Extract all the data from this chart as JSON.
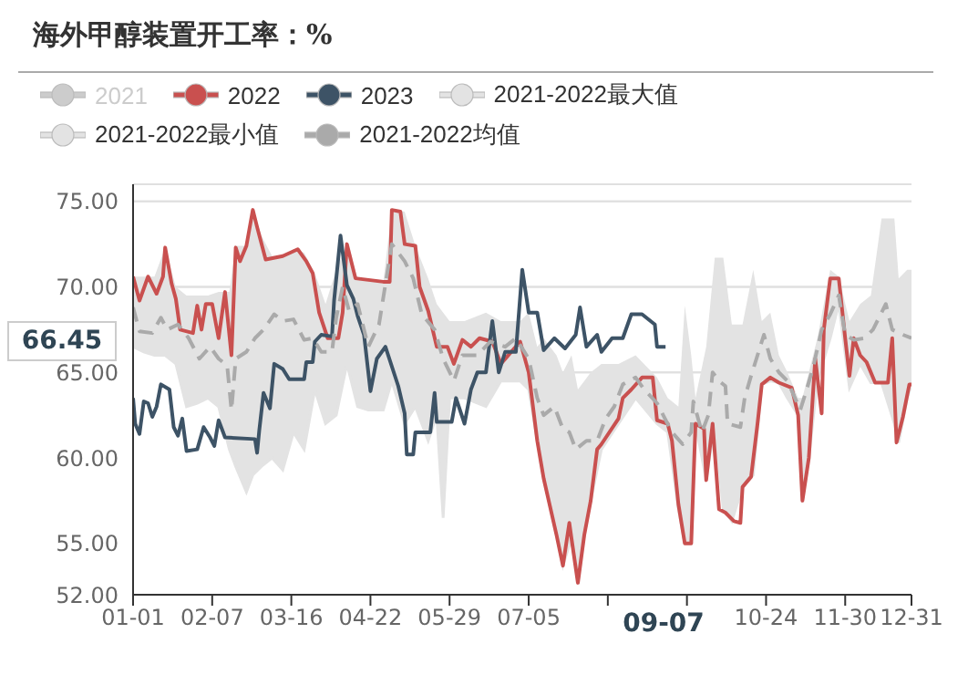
{
  "chart_data": {
    "type": "line",
    "title": "海外甲醇装置开工率：%",
    "legend": "top left",
    "grid": "y",
    "marker": "none",
    "xlim": [
      "--01-01",
      "--12-31"
    ],
    "xticks": [
      {
        "value": "--01-01",
        "label": "01-01"
      },
      {
        "value": "--02-07",
        "label": "02-07"
      },
      {
        "value": "--03-16",
        "label": "03-16"
      },
      {
        "value": "--04-22",
        "label": "04-22"
      },
      {
        "value": "--05-29",
        "label": "05-29"
      },
      {
        "value": "--07-05",
        "label": "07-05"
      },
      {
        "value": "--08-11",
        "label": null
      },
      {
        "value": "--09-17",
        "label": null
      },
      {
        "value": "--10-24",
        "label": "10-24"
      },
      {
        "value": "--11-30",
        "label": "11-30"
      },
      {
        "value": "--12-31",
        "label": "12-31"
      }
    ],
    "ylim": [
      52,
      76
    ],
    "yticks": [
      {
        "value": 52,
        "label": "52.00"
      },
      {
        "value": 55,
        "label": "55.00"
      },
      {
        "value": 60,
        "label": "60.00"
      },
      {
        "value": 65,
        "label": "65.00"
      },
      {
        "value": 70,
        "label": "70.00"
      },
      {
        "value": 75,
        "label": "75.00"
      }
    ],
    "annotations": [
      "66.45",
      "09-07"
    ],
    "series": [
      {
        "name": "2021",
        "color": "#cccccc"
      },
      {
        "name": "2022",
        "color": "#c9504f",
        "x": [
          "--01-01",
          "--01-04",
          "--01-08",
          "--01-12",
          "--01-15",
          "--01-16",
          "--01-19",
          "--01-21",
          "--01-23",
          "--01-29",
          "--01-31",
          "--02-02",
          "--02-04",
          "--02-07",
          "--02-10",
          "--02-13",
          "--02-16",
          "--02-18",
          "--02-20",
          "--02-23",
          "--02-26",
          "--02-28",
          "--03-04",
          "--03-12",
          "--03-19",
          "--03-23",
          "--03-26",
          "--03-29",
          "--04-02",
          "--04-07",
          "--04-09",
          "--04-11",
          "--04-15",
          "--04-28",
          "--05-01",
          "--05-02",
          "--05-06",
          "--05-08",
          "--05-13",
          "--05-15",
          "--05-19",
          "--05-23",
          "--05-28",
          "--05-31",
          "--06-04",
          "--06-08",
          "--06-12",
          "--06-18",
          "--06-22",
          "--07-01",
          "--07-05",
          "--07-09",
          "--07-12",
          "--07-18",
          "--07-21",
          "--07-24",
          "--07-25",
          "--07-28",
          "--07-31",
          "--08-03",
          "--08-06",
          "--08-08",
          "--08-16",
          "--08-18",
          "--08-22",
          "--08-27",
          "--09-01",
          "--09-03",
          "--09-08",
          "--09-10",
          "--09-13",
          "--09-16",
          "--09-19",
          "--09-21",
          "--09-25",
          "--09-26",
          "--09-29",
          "--10-02",
          "--10-05",
          "--10-09",
          "--10-12",
          "--10-13",
          "--10-17",
          "--10-20",
          "--10-22",
          "--10-26",
          "--10-30",
          "--11-05",
          "--11-08",
          "--11-10",
          "--11-13",
          "--11-16",
          "--11-19",
          "--11-20",
          "--11-23",
          "--11-27",
          "--11-30",
          "--12-02",
          "--12-04",
          "--12-07",
          "--12-10",
          "--12-14",
          "--12-20",
          "--12-22",
          "--12-24",
          "--12-27",
          "--12-30",
          "--12-31"
        ],
        "values": [
          70.6,
          69.2,
          70.6,
          69.6,
          70.6,
          72.3,
          70.2,
          69.3,
          67.5,
          67.3,
          68.9,
          67.5,
          69.0,
          69.0,
          67.0,
          69.7,
          66.0,
          72.3,
          71.5,
          72.4,
          74.5,
          73.5,
          71.6,
          71.8,
          72.2,
          71.5,
          70.8,
          68.5,
          67.0,
          67.0,
          68.5,
          72.5,
          70.5,
          70.3,
          70.3,
          74.5,
          74.4,
          72.5,
          72.4,
          70.0,
          68.6,
          66.5,
          66.5,
          65.5,
          66.9,
          66.5,
          67.0,
          66.8,
          65.5,
          66.8,
          65.0,
          61.0,
          58.8,
          55.5,
          53.7,
          56.2,
          55.3,
          52.7,
          55.5,
          57.5,
          60.5,
          60.8,
          62.3,
          63.5,
          64.0,
          64.7,
          64.7,
          62.2,
          62.0,
          61.0,
          57.3,
          55.0,
          55.0,
          62.0,
          61.7,
          58.7,
          62.0,
          57.0,
          56.8,
          56.3,
          56.2,
          58.3,
          58.9,
          62.0,
          64.3,
          64.7,
          64.4,
          64.1,
          62.5,
          57.5,
          60.0,
          65.8,
          62.6,
          67.5,
          70.5,
          70.5,
          67.0,
          64.8,
          67.0,
          66.0,
          65.6,
          64.4,
          64.4,
          67.0,
          60.9,
          62.4,
          64.3,
          64.3
        ]
      },
      {
        "name": "2023",
        "color": "#3d5366",
        "x": [
          "--01-01",
          "--01-02",
          "--01-04",
          "--01-06",
          "--01-08",
          "--01-10",
          "--01-12",
          "--01-14",
          "--01-18",
          "--01-20",
          "--01-22",
          "--01-24",
          "--01-26",
          "--01-31",
          "--02-03",
          "--02-06",
          "--02-08",
          "--02-10",
          "--02-13",
          "--02-27",
          "--02-28",
          "--03-01",
          "--03-03",
          "--03-06",
          "--03-08",
          "--03-12",
          "--03-15",
          "--03-22",
          "--03-23",
          "--03-26",
          "--03-27",
          "--03-30",
          "--04-04",
          "--04-05",
          "--04-08",
          "--04-11",
          "--04-14",
          "--04-16",
          "--04-19",
          "--04-22",
          "--04-25",
          "--04-29",
          "--05-05",
          "--05-08",
          "--05-09",
          "--05-12",
          "--05-13",
          "--05-20",
          "--05-22",
          "--05-23",
          "--05-30",
          "--06-01",
          "--06-05",
          "--06-08",
          "--06-11",
          "--06-15",
          "--06-18",
          "--06-21",
          "--06-24",
          "--06-29",
          "--07-02",
          "--07-05",
          "--07-09",
          "--07-12",
          "--07-17",
          "--07-22",
          "--07-27",
          "--07-29",
          "--08-01",
          "--08-06",
          "--08-08",
          "--08-13",
          "--08-18",
          "--08-22",
          "--08-27",
          "--09-02",
          "--09-03",
          "--09-07"
        ],
        "values": [
          63.5,
          62.0,
          61.4,
          63.3,
          63.2,
          62.4,
          63.0,
          64.3,
          64.0,
          61.8,
          61.3,
          62.3,
          60.4,
          60.5,
          61.8,
          61.2,
          60.7,
          62.2,
          61.2,
          61.1,
          60.3,
          61.6,
          63.8,
          62.9,
          65.5,
          65.2,
          64.6,
          64.6,
          65.6,
          65.6,
          66.8,
          67.2,
          67.1,
          69.2,
          73.0,
          70.1,
          69.3,
          68.3,
          67.2,
          63.9,
          65.8,
          66.5,
          64.2,
          62.6,
          60.2,
          60.2,
          61.5,
          61.5,
          63.8,
          62.1,
          62.1,
          63.5,
          62.0,
          64.0,
          65.0,
          65.0,
          68.0,
          65.0,
          66.2,
          66.2,
          71.0,
          68.5,
          68.5,
          66.3,
          67.0,
          66.4,
          67.2,
          68.8,
          66.5,
          67.2,
          66.2,
          67.0,
          67.0,
          68.4,
          68.4,
          67.8,
          66.5,
          66.5
        ]
      },
      {
        "name": "2021-2022最大值",
        "color": "#e3e3e3",
        "type": "area",
        "x": [
          "--01-01",
          "--01-06",
          "--01-11",
          "--01-16",
          "--01-21",
          "--01-26",
          "--01-31",
          "--02-05",
          "--02-10",
          "--02-15",
          "--02-18",
          "--02-23",
          "--02-26",
          "--03-02",
          "--03-07",
          "--03-12",
          "--03-17",
          "--03-22",
          "--03-27",
          "--04-01",
          "--04-06",
          "--04-11",
          "--04-16",
          "--04-21",
          "--04-28",
          "--05-02",
          "--05-08",
          "--05-13",
          "--05-19",
          "--05-23",
          "--05-26",
          "--05-29",
          "--06-05",
          "--06-15",
          "--06-22",
          "--07-01",
          "--07-05",
          "--07-09",
          "--07-12",
          "--07-18",
          "--07-21",
          "--07-25",
          "--07-28",
          "--07-31",
          "--08-03",
          "--08-08",
          "--08-16",
          "--08-24",
          "--09-03",
          "--09-08",
          "--09-13",
          "--09-16",
          "--09-19",
          "--09-21",
          "--09-26",
          "--09-30",
          "--10-04",
          "--10-08",
          "--10-13",
          "--10-18",
          "--10-22",
          "--10-26",
          "--10-30",
          "--11-03",
          "--11-08",
          "--11-10",
          "--11-13",
          "--11-17",
          "--11-23",
          "--11-27",
          "--12-02",
          "--12-07",
          "--12-12",
          "--12-17",
          "--12-23",
          "--12-25",
          "--12-29",
          "--12-31"
        ],
        "values": [
          70.6,
          70.6,
          70.6,
          72.3,
          70.0,
          69.5,
          69.5,
          69.5,
          69.7,
          69.7,
          72.4,
          72.4,
          74.5,
          73.0,
          71.8,
          71.8,
          72.2,
          72.0,
          70.8,
          69.0,
          71.0,
          72.5,
          70.5,
          70.5,
          70.3,
          74.5,
          74.4,
          72.4,
          70.5,
          69.0,
          68.5,
          68.0,
          68.0,
          68.5,
          68.0,
          68.0,
          68.5,
          66.5,
          67.0,
          66.0,
          65.0,
          66.0,
          64.0,
          64.5,
          65.0,
          65.5,
          65.5,
          66.0,
          64.7,
          63.5,
          63.0,
          68.9,
          66.0,
          63.5,
          66.5,
          71.7,
          71.7,
          67.8,
          67.8,
          71.0,
          68.0,
          68.5,
          66.0,
          65.0,
          63.5,
          63.5,
          65.0,
          67.0,
          71.0,
          70.6,
          68.0,
          69.0,
          69.5,
          74.0,
          74.0,
          70.5,
          71.0,
          71.0
        ]
      },
      {
        "name": "2021-2022最小值",
        "color": "#e3e3e3",
        "type": "area",
        "x": [
          "--01-01",
          "--01-06",
          "--01-11",
          "--01-16",
          "--01-21",
          "--01-26",
          "--01-31",
          "--02-05",
          "--02-10",
          "--02-15",
          "--02-18",
          "--02-23",
          "--02-26",
          "--03-02",
          "--03-07",
          "--03-12",
          "--03-17",
          "--03-22",
          "--03-27",
          "--04-01",
          "--04-06",
          "--04-11",
          "--04-16",
          "--04-21",
          "--04-28",
          "--05-02",
          "--05-08",
          "--05-13",
          "--05-19",
          "--05-23",
          "--05-26",
          "--05-29",
          "--06-05",
          "--06-15",
          "--06-22",
          "--07-01",
          "--07-05",
          "--07-09",
          "--07-12",
          "--07-18",
          "--07-21",
          "--07-25",
          "--07-28",
          "--07-31",
          "--08-03",
          "--08-08",
          "--08-16",
          "--08-24",
          "--09-03",
          "--09-08",
          "--09-13",
          "--09-16",
          "--09-19",
          "--09-21",
          "--09-26",
          "--09-30",
          "--10-04",
          "--10-08",
          "--10-13",
          "--10-18",
          "--10-22",
          "--10-26",
          "--10-30",
          "--11-03",
          "--11-08",
          "--11-10",
          "--11-13",
          "--11-17",
          "--11-23",
          "--11-27",
          "--12-02",
          "--12-07",
          "--12-12",
          "--12-17",
          "--12-23",
          "--12-25",
          "--12-29",
          "--12-31"
        ],
        "values": [
          66.5,
          66.2,
          66.0,
          66.0,
          65.5,
          63.0,
          63.2,
          63.5,
          63.0,
          60.5,
          59.5,
          58.0,
          59.0,
          59.5,
          60.0,
          59.3,
          61.5,
          60.5,
          64.0,
          62.0,
          62.5,
          65.5,
          63.0,
          62.8,
          62.8,
          64.5,
          62.0,
          63.0,
          61.0,
          62.5,
          56.5,
          63.5,
          63.5,
          63.0,
          64.5,
          64.5,
          64.0,
          61.0,
          58.8,
          55.5,
          53.7,
          55.3,
          52.7,
          55.5,
          57.5,
          60.5,
          62.0,
          63.5,
          62.0,
          61.5,
          57.0,
          55.0,
          55.0,
          62.0,
          58.7,
          62.0,
          57.0,
          56.3,
          58.3,
          59.0,
          64.3,
          64.5,
          64.4,
          63.5,
          62.5,
          57.5,
          60.0,
          64.5,
          67.0,
          69.0,
          64.1,
          65.5,
          64.4,
          64.4,
          62.0,
          60.9,
          63.5,
          64.3
        ]
      },
      {
        "name": "2021-2022均值",
        "color": "#aaaaaa",
        "line_style": "dashed",
        "x": [
          "--01-01",
          "--01-04",
          "--01-10",
          "--01-14",
          "--01-17",
          "--01-22",
          "--01-27",
          "--02-01",
          "--02-06",
          "--02-10",
          "--02-14",
          "--02-16",
          "--02-18",
          "--02-23",
          "--02-27",
          "--03-03",
          "--03-08",
          "--03-12",
          "--03-17",
          "--03-22",
          "--03-26",
          "--03-30",
          "--04-04",
          "--04-06",
          "--04-09",
          "--04-12",
          "--04-16",
          "--04-21",
          "--04-26",
          "--05-02",
          "--05-08",
          "--05-12",
          "--05-16",
          "--05-22",
          "--05-26",
          "--05-31",
          "--06-04",
          "--06-11",
          "--06-17",
          "--06-24",
          "--06-29",
          "--07-05",
          "--07-09",
          "--07-12",
          "--07-17",
          "--07-21",
          "--07-24",
          "--07-27",
          "--08-01",
          "--08-06",
          "--08-10",
          "--08-14",
          "--08-18",
          "--08-24",
          "--08-28",
          "--09-03",
          "--09-10",
          "--09-15",
          "--09-19",
          "--09-20",
          "--09-24",
          "--09-27",
          "--09-29",
          "--10-02",
          "--10-05",
          "--10-06",
          "--10-12",
          "--10-14",
          "--10-17",
          "--10-20",
          "--10-23",
          "--10-26",
          "--10-30",
          "--11-03",
          "--11-09",
          "--11-12",
          "--11-15",
          "--11-19",
          "--11-23",
          "--11-27",
          "--11-30",
          "--12-04",
          "--12-09",
          "--12-13",
          "--12-19",
          "--12-22",
          "--12-27",
          "--12-31"
        ],
        "values": [
          68.8,
          67.4,
          67.3,
          68.2,
          67.5,
          67.8,
          67.0,
          65.8,
          66.5,
          65.8,
          65.4,
          62.8,
          65.8,
          66.2,
          67.0,
          67.5,
          68.4,
          68.0,
          68.1,
          66.9,
          67.0,
          66.2,
          66.2,
          68.2,
          70.0,
          68.6,
          69.0,
          66.5,
          67.8,
          72.5,
          71.5,
          70.5,
          68.4,
          67.5,
          65.8,
          64.5,
          66.0,
          66.0,
          66.8,
          66.5,
          67.0,
          65.8,
          63.5,
          62.5,
          63.0,
          61.7,
          61.5,
          60.5,
          61.0,
          61.0,
          62.3,
          63.0,
          64.3,
          64.7,
          64.0,
          63.2,
          61.5,
          60.8,
          61.5,
          63.3,
          61.5,
          62.5,
          65.0,
          64.5,
          64.2,
          62.0,
          61.8,
          63.5,
          64.8,
          66.0,
          67.2,
          65.8,
          65.0,
          64.5,
          62.8,
          64.0,
          65.3,
          67.5,
          68.4,
          69.5,
          67.2,
          66.9,
          67.0,
          67.5,
          69.0,
          67.5,
          67.2,
          67.0
        ]
      }
    ]
  }
}
